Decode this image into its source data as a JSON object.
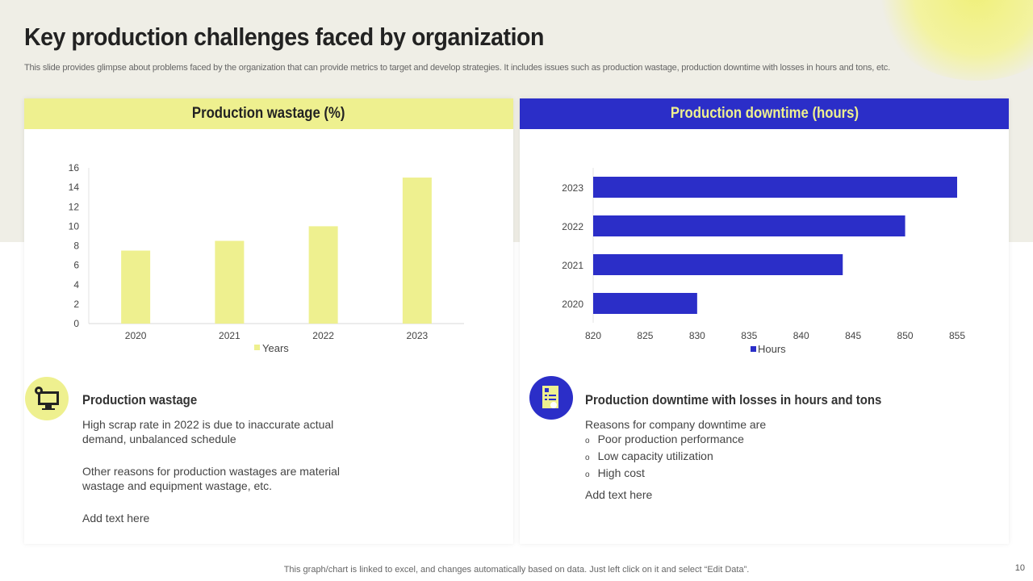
{
  "title": "Key production challenges faced by organization",
  "subtitle": "This slide provides glimpse about problems faced by the organization that can provide metrics to target and develop strategies. It includes issues such as production wastage, production downtime with losses in hours and tons, etc.",
  "colors": {
    "yellow": "#eef08f",
    "blue": "#2b2ec8",
    "header_yellow": "#eef08f"
  },
  "left": {
    "header": "Production wastage (%)",
    "icon": "computer-gear-icon",
    "heading": "Production wastage",
    "para1": "High scrap rate in 2022 is due to inaccurate actual demand, unbalanced schedule",
    "para2": "Other reasons for production wastages are material wastage and equipment wastage, etc.",
    "para3": "Add text here"
  },
  "right": {
    "header": "Production downtime (hours)",
    "icon": "document-certificate-icon",
    "heading": "Production downtime with losses in hours and tons",
    "intro": "Reasons for company downtime are",
    "bullets": [
      "Poor production performance",
      "Low capacity utilization",
      "High cost"
    ],
    "para": "Add text here"
  },
  "chart_data": [
    {
      "type": "bar",
      "categories": [
        "2020",
        "2021",
        "2022",
        "2023"
      ],
      "series": [
        {
          "name": "Years",
          "values": [
            7.5,
            8.5,
            10,
            15
          ]
        }
      ],
      "ylim": [
        0,
        16
      ],
      "yticks": [
        "0",
        "2",
        "4",
        "6",
        "8",
        "10",
        "12",
        "14",
        "16"
      ],
      "legend": "bottom",
      "color": "#eef08f"
    },
    {
      "type": "bar",
      "orientation": "horizontal",
      "categories": [
        "2020",
        "2021",
        "2022",
        "2023"
      ],
      "series": [
        {
          "name": "Hours",
          "values": [
            830,
            844,
            850,
            855
          ]
        }
      ],
      "xlim": [
        820,
        855
      ],
      "xticks": [
        "820",
        "825",
        "830",
        "835",
        "840",
        "845",
        "850",
        "855"
      ],
      "legend": "bottom",
      "color": "#2b2ec8"
    }
  ],
  "footer": "This graph/chart is linked to excel,  and changes automatically based on data. Just left click on it and select “Edit Data”.",
  "page_number": "10"
}
